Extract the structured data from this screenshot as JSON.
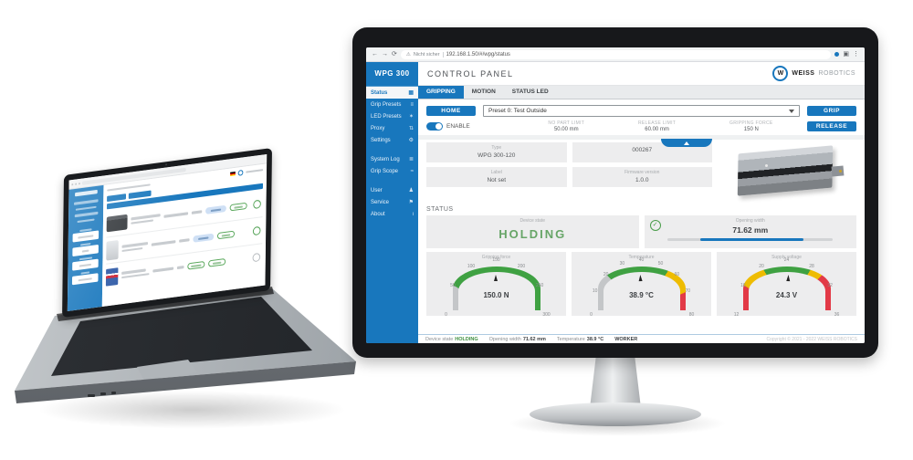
{
  "colors": {
    "accent": "#1877bd",
    "holding_green": "#67a567",
    "gauge_green": "#3fa142",
    "gauge_yellow": "#eebc01",
    "gauge_red": "#e23a47",
    "gauge_gray": "#c4c6c8"
  },
  "monitor": {
    "browser": {
      "back_icon": "←",
      "forward_icon": "→",
      "reload_icon": "⟳",
      "warning_icon": "⚠",
      "security_label": "Nicht sicher",
      "url": "192.168.1.50/#/wpg/status",
      "menu_icon": "⋮"
    },
    "sidebar_title": "WPG 300",
    "header_title": "CONTROL PANEL",
    "brand": {
      "logo_letter": "W",
      "name_bold": "WEISS",
      "name_light": "ROBOTICS"
    },
    "sidebar_items": [
      {
        "label": "Status",
        "glyph": "▦",
        "active": true
      },
      {
        "label": "Grip Presets",
        "glyph": "≡",
        "active": false
      },
      {
        "label": "LED Presets",
        "glyph": "✶",
        "active": false
      },
      {
        "label": "Proxy",
        "glyph": "⇅",
        "active": false
      },
      {
        "label": "Settings",
        "glyph": "⚙",
        "active": false
      },
      {
        "gap": true
      },
      {
        "label": "System Log",
        "glyph": "≣",
        "active": false
      },
      {
        "label": "Grip Scope",
        "glyph": "≈",
        "active": false
      },
      {
        "gap": true
      },
      {
        "label": "User",
        "glyph": "♟",
        "active": false
      },
      {
        "label": "Service",
        "glyph": "⚑",
        "active": false
      },
      {
        "label": "About",
        "glyph": "i",
        "active": false
      }
    ],
    "tabs": [
      {
        "label": "GRIPPING",
        "active": true
      },
      {
        "label": "MOTION",
        "active": false
      },
      {
        "label": "STATUS LED",
        "active": false
      }
    ],
    "controls": {
      "home_label": "HOME",
      "preset_value": "Preset 0: Test Outside",
      "grip_label": "GRIP",
      "release_label": "RELEASE",
      "enable_label": "ENABLE",
      "params": [
        {
          "label": "NO PART LIMIT",
          "value": "50.00 mm"
        },
        {
          "label": "RELEASE LIMIT",
          "value": "60.00 mm"
        },
        {
          "label": "GRIPPING FORCE",
          "value": "150 N"
        }
      ]
    },
    "device_info": {
      "fields": [
        {
          "label": "Type",
          "value": "WPG 300-120"
        },
        {
          "label": "",
          "value": "000267"
        },
        {
          "label": "Label",
          "value": "Not set"
        },
        {
          "label": "Firmware version",
          "value": "1.0.0"
        }
      ]
    },
    "status_section": {
      "heading": "STATUS",
      "device_state_label": "Device state",
      "device_state": "HOLDING",
      "check_icon": "✓",
      "opening_width_label": "Opening width",
      "opening_width": "71.62 mm",
      "bar_fill_start_pct": 20,
      "bar_fill_end_pct": 82
    },
    "footer": {
      "items": [
        {
          "label": "Device state",
          "value": "HOLDING",
          "value_color": "#3f8f3f"
        },
        {
          "label": "Opening width",
          "value": "71.62 mm",
          "value_color": "#3c3f42"
        },
        {
          "label": "Temperature",
          "value": "38.9 °C",
          "value_color": "#3c3f42"
        },
        {
          "label": "",
          "value": "WORKER",
          "value_color": "#3c3f42"
        }
      ],
      "copyright": "Copyright © 2021 - 2022 WEISS ROBOTICS"
    }
  },
  "chart_data": {
    "type": "gauge",
    "gauges": [
      {
        "title": "Gripping force",
        "display": "150.0 N",
        "value": 150.0,
        "min": 0,
        "max": 300,
        "ticks": [
          0,
          50,
          100,
          150,
          200,
          250,
          300
        ],
        "segments": [
          {
            "from": 0,
            "to": 50,
            "color": "#c4c6c8"
          },
          {
            "from": 50,
            "to": 300,
            "color": "#3fa142"
          }
        ]
      },
      {
        "title": "Temperature",
        "display": "38.9 °C",
        "value": 38.9,
        "min": 0,
        "max": 80,
        "ticks": [
          0,
          10,
          20,
          30,
          40,
          50,
          60,
          70,
          80
        ],
        "segments": [
          {
            "from": 0,
            "to": 20,
            "color": "#c4c6c8"
          },
          {
            "from": 20,
            "to": 55,
            "color": "#3fa142"
          },
          {
            "from": 55,
            "to": 70,
            "color": "#eebc01"
          },
          {
            "from": 70,
            "to": 80,
            "color": "#e23a47"
          }
        ]
      },
      {
        "title": "Supply voltage",
        "display": "24.3 V",
        "value": 24.3,
        "min": 12,
        "max": 36,
        "ticks": [
          12,
          16,
          20,
          24,
          28,
          32,
          36
        ],
        "segments": [
          {
            "from": 12,
            "to": 16,
            "color": "#e23a47"
          },
          {
            "from": 16,
            "to": 20,
            "color": "#eebc01"
          },
          {
            "from": 20,
            "to": 28,
            "color": "#3fa142"
          },
          {
            "from": 28,
            "to": 30,
            "color": "#eebc01"
          },
          {
            "from": 30,
            "to": 36,
            "color": "#e23a47"
          }
        ]
      }
    ]
  }
}
